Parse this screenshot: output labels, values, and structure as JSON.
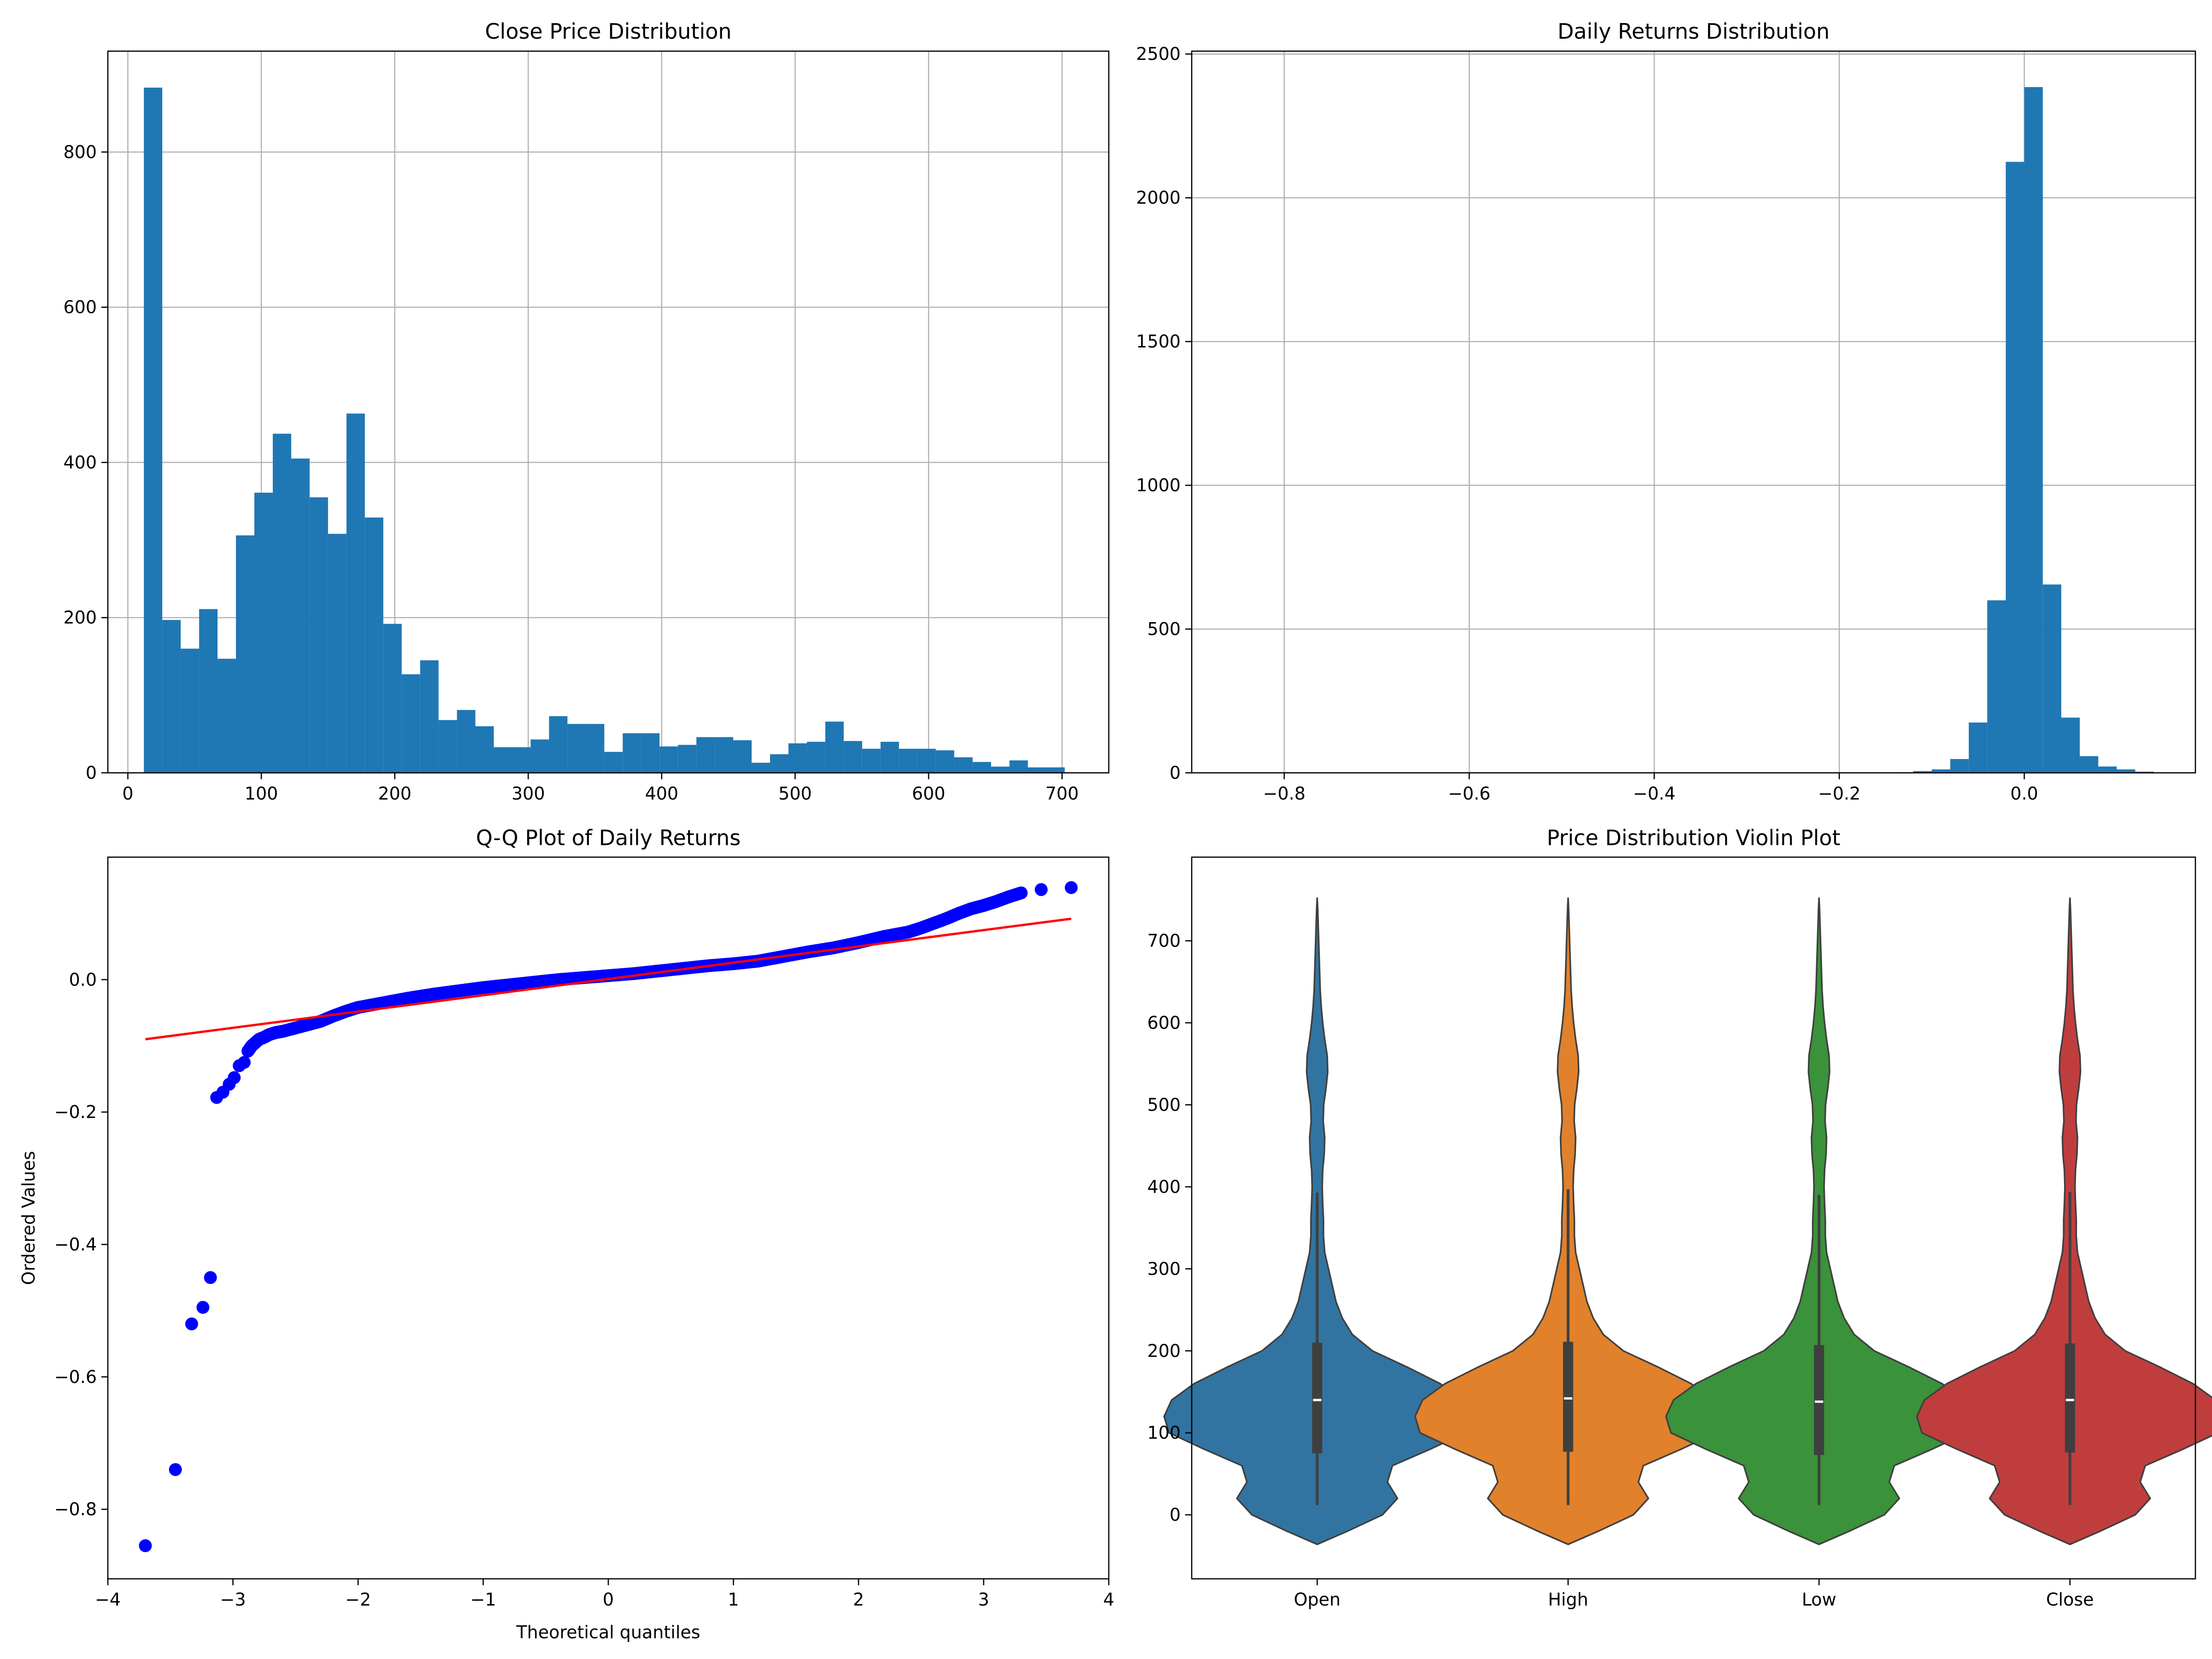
{
  "chart_data": [
    {
      "type": "bar",
      "title": "Close Price Distribution",
      "xlabel": "",
      "ylabel": "",
      "xlim": [
        -15,
        735
      ],
      "ylim": [
        0,
        930
      ],
      "xticks": [
        0,
        100,
        200,
        300,
        400,
        500,
        600,
        700
      ],
      "yticks": [
        0,
        200,
        400,
        600,
        800
      ],
      "grid": true,
      "color": "#1f77b4",
      "bin_start": 12,
      "bin_width": 13.8,
      "values": [
        883,
        197,
        160,
        211,
        147,
        306,
        361,
        437,
        405,
        355,
        308,
        463,
        329,
        192,
        127,
        145,
        68,
        81,
        60,
        33,
        33,
        43,
        73,
        63,
        63,
        27,
        51,
        51,
        34,
        36,
        46,
        46,
        42,
        13,
        24,
        38,
        40,
        66,
        41,
        31,
        40,
        31,
        31,
        29,
        20,
        14,
        8,
        16,
        7,
        7
      ]
    },
    {
      "type": "bar",
      "title": "Daily Returns Distribution",
      "xlabel": "",
      "ylabel": "",
      "xlim": [
        -0.9,
        0.185
      ],
      "ylim": [
        0,
        2510
      ],
      "xticks": [
        -0.8,
        -0.6,
        -0.4,
        -0.2,
        0.0
      ],
      "xtick_labels": [
        "−0.8",
        "−0.6",
        "−0.4",
        "−0.2",
        "0.0"
      ],
      "yticks": [
        0,
        500,
        1000,
        1500,
        2000,
        2500
      ],
      "grid": true,
      "color": "#1f77b4",
      "bin_start": -0.86,
      "bin_width": 0.02,
      "values": [
        1,
        1,
        1,
        0,
        1,
        0,
        0,
        0,
        0,
        0,
        0,
        0,
        0,
        0,
        0,
        0,
        0,
        0,
        0,
        0,
        0,
        0,
        0,
        0,
        0,
        0,
        0,
        0,
        0,
        0,
        0,
        0,
        0,
        0,
        0,
        0,
        2,
        6,
        12,
        48,
        175,
        600,
        2125,
        2385,
        655,
        192,
        58,
        22,
        12,
        4
      ]
    },
    {
      "type": "scatter",
      "title": "Q-Q Plot of Daily Returns",
      "xlabel": "Theoretical quantiles",
      "ylabel": "Ordered Values",
      "xlim": [
        -4.0,
        4.0
      ],
      "ylim": [
        -0.905,
        0.185
      ],
      "xticks": [
        -4,
        -3,
        -2,
        -1,
        0,
        1,
        2,
        3,
        4
      ],
      "xtick_labels": [
        "−4",
        "−3",
        "−2",
        "−1",
        "0",
        "1",
        "2",
        "3",
        "4"
      ],
      "yticks": [
        -0.8,
        -0.6,
        -0.4,
        -0.2,
        0.0
      ],
      "ytick_labels": [
        "−0.8",
        "−0.6",
        "−0.4",
        "−0.2",
        "0.0"
      ],
      "grid": false,
      "point_color": "#0000ff",
      "line_color": "#ff0000",
      "fit_line": {
        "x": [
          -3.7,
          3.7
        ],
        "y": [
          -0.09,
          0.092
        ]
      },
      "x": [
        -3.7,
        -3.46,
        -3.33,
        -3.24,
        -3.18,
        -3.13,
        -3.08,
        -3.03,
        -2.99,
        -2.95,
        -2.91,
        -2.88,
        -2.85,
        -2.82,
        -2.79,
        -2.75,
        -2.71,
        -2.66,
        -2.6,
        -2.5,
        -2.4,
        -2.3,
        -2.2,
        -2.1,
        -2.0,
        -1.8,
        -1.6,
        -1.4,
        -1.2,
        -1.0,
        -0.8,
        -0.6,
        -0.4,
        -0.2,
        0.0,
        0.2,
        0.4,
        0.6,
        0.8,
        1.0,
        1.2,
        1.4,
        1.6,
        1.8,
        2.0,
        2.2,
        2.4,
        2.5,
        2.6,
        2.7,
        2.8,
        2.9,
        3.0,
        3.1,
        3.2,
        3.3,
        3.46,
        3.7
      ],
      "y": [
        -0.855,
        -0.74,
        -0.52,
        -0.495,
        -0.45,
        -0.178,
        -0.17,
        -0.158,
        -0.148,
        -0.13,
        -0.125,
        -0.108,
        -0.1,
        -0.095,
        -0.09,
        -0.087,
        -0.083,
        -0.08,
        -0.078,
        -0.073,
        -0.068,
        -0.063,
        -0.055,
        -0.048,
        -0.042,
        -0.035,
        -0.028,
        -0.022,
        -0.017,
        -0.012,
        -0.008,
        -0.004,
        0.0,
        0.003,
        0.006,
        0.009,
        0.013,
        0.017,
        0.021,
        0.024,
        0.028,
        0.035,
        0.042,
        0.048,
        0.056,
        0.065,
        0.072,
        0.078,
        0.085,
        0.092,
        0.1,
        0.107,
        0.112,
        0.118,
        0.125,
        0.131,
        0.136,
        0.139
      ]
    },
    {
      "type": "violin",
      "title": "Price Distribution Violin Plot",
      "xlabel": "",
      "ylabel": "",
      "ylim": [
        -78,
        802
      ],
      "yticks": [
        0,
        100,
        200,
        300,
        400,
        500,
        600,
        700
      ],
      "grid": false,
      "categories": [
        "Open",
        "High",
        "Low",
        "Close"
      ],
      "colors": [
        "#3274a1",
        "#e1812c",
        "#3a923a",
        "#c03d3e"
      ],
      "density_y": [
        -36,
        -20,
        0,
        20,
        40,
        60,
        80,
        100,
        120,
        140,
        160,
        180,
        200,
        220,
        240,
        260,
        280,
        300,
        320,
        340,
        360,
        380,
        400,
        420,
        440,
        460,
        480,
        500,
        520,
        540,
        560,
        580,
        600,
        620,
        640,
        660,
        680,
        700,
        720,
        740,
        752
      ],
      "density_half_width": [
        0,
        0.12,
        0.26,
        0.32,
        0.28,
        0.3,
        0.45,
        0.59,
        0.61,
        0.58,
        0.49,
        0.36,
        0.22,
        0.14,
        0.1,
        0.075,
        0.06,
        0.045,
        0.03,
        0.025,
        0.025,
        0.022,
        0.02,
        0.022,
        0.028,
        0.03,
        0.024,
        0.026,
        0.035,
        0.042,
        0.04,
        0.03,
        0.022,
        0.016,
        0.012,
        0.01,
        0.008,
        0.006,
        0.004,
        0.002,
        0
      ],
      "quartiles": [
        {
          "q1": 75,
          "median": 140,
          "q3": 210,
          "whisker_low": 12,
          "whisker_high": 393
        },
        {
          "q1": 77,
          "median": 142,
          "q3": 211,
          "whisker_low": 12,
          "whisker_high": 397
        },
        {
          "q1": 73,
          "median": 138,
          "q3": 207,
          "whisker_low": 12,
          "whisker_high": 390
        },
        {
          "q1": 76,
          "median": 140,
          "q3": 209,
          "whisker_low": 12,
          "whisker_high": 394
        }
      ]
    }
  ]
}
